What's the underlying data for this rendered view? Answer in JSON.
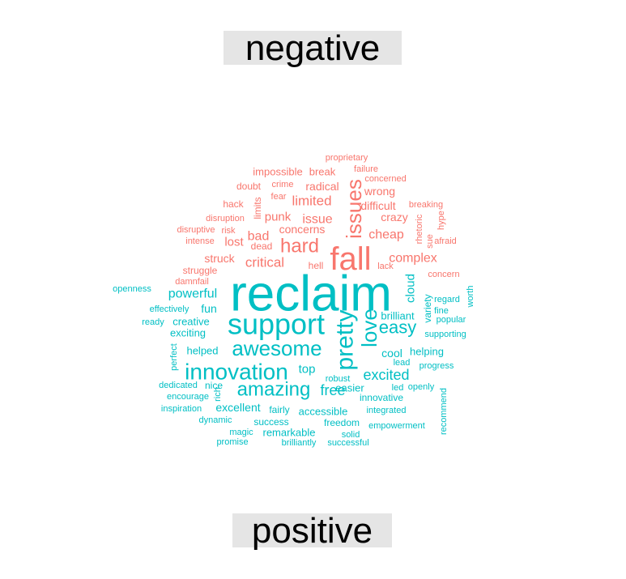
{
  "chart_data": {
    "type": "comparison-wordcloud",
    "groups": [
      {
        "name": "negative",
        "color": "#F8766D"
      },
      {
        "name": "positive",
        "color": "#00BFC4"
      }
    ],
    "words": [
      {
        "text": "proprietary",
        "group": "negative",
        "size": 11
      },
      {
        "text": "failure",
        "group": "negative",
        "size": 11
      },
      {
        "text": "impossible",
        "group": "negative",
        "size": 13
      },
      {
        "text": "break",
        "group": "negative",
        "size": 13
      },
      {
        "text": "concerned",
        "group": "negative",
        "size": 11
      },
      {
        "text": "doubt",
        "group": "negative",
        "size": 12
      },
      {
        "text": "crime",
        "group": "negative",
        "size": 11
      },
      {
        "text": "radical",
        "group": "negative",
        "size": 14
      },
      {
        "text": "issues",
        "group": "negative",
        "size": 26
      },
      {
        "text": "wrong",
        "group": "negative",
        "size": 14
      },
      {
        "text": "hack",
        "group": "negative",
        "size": 12
      },
      {
        "text": "fear",
        "group": "negative",
        "size": 11
      },
      {
        "text": "limited",
        "group": "negative",
        "size": 17
      },
      {
        "text": "difficult",
        "group": "negative",
        "size": 14
      },
      {
        "text": "breaking",
        "group": "negative",
        "size": 11
      },
      {
        "text": "limits",
        "group": "negative",
        "size": 12
      },
      {
        "text": "disruption",
        "group": "negative",
        "size": 11
      },
      {
        "text": "punk",
        "group": "negative",
        "size": 15
      },
      {
        "text": "issue",
        "group": "negative",
        "size": 16
      },
      {
        "text": "crazy",
        "group": "negative",
        "size": 14
      },
      {
        "text": "rhetoric",
        "group": "negative",
        "size": 11
      },
      {
        "text": "sue",
        "group": "negative",
        "size": 11
      },
      {
        "text": "hype",
        "group": "negative",
        "size": 11
      },
      {
        "text": "disruptive",
        "group": "negative",
        "size": 11
      },
      {
        "text": "risk",
        "group": "negative",
        "size": 11
      },
      {
        "text": "concerns",
        "group": "negative",
        "size": 14
      },
      {
        "text": "cheap",
        "group": "negative",
        "size": 16
      },
      {
        "text": "intense",
        "group": "negative",
        "size": 11
      },
      {
        "text": "bad",
        "group": "negative",
        "size": 16
      },
      {
        "text": "hard",
        "group": "negative",
        "size": 24
      },
      {
        "text": "afraid",
        "group": "negative",
        "size": 11
      },
      {
        "text": "lost",
        "group": "negative",
        "size": 15
      },
      {
        "text": "dead",
        "group": "negative",
        "size": 12
      },
      {
        "text": "fall",
        "group": "negative",
        "size": 40
      },
      {
        "text": "complex",
        "group": "negative",
        "size": 16
      },
      {
        "text": "struck",
        "group": "negative",
        "size": 14
      },
      {
        "text": "critical",
        "group": "negative",
        "size": 17
      },
      {
        "text": "struggle",
        "group": "negative",
        "size": 12
      },
      {
        "text": "hell",
        "group": "negative",
        "size": 12
      },
      {
        "text": "lack",
        "group": "negative",
        "size": 11
      },
      {
        "text": "concern",
        "group": "negative",
        "size": 11
      },
      {
        "text": "damnfail",
        "group": "negative",
        "size": 11
      },
      {
        "text": "reclaim",
        "group": "positive",
        "size": 62
      },
      {
        "text": "openness",
        "group": "positive",
        "size": 11
      },
      {
        "text": "powerful",
        "group": "positive",
        "size": 16
      },
      {
        "text": "cloud",
        "group": "positive",
        "size": 15
      },
      {
        "text": "worth",
        "group": "positive",
        "size": 11
      },
      {
        "text": "regard",
        "group": "positive",
        "size": 11
      },
      {
        "text": "effectively",
        "group": "positive",
        "size": 11
      },
      {
        "text": "fun",
        "group": "positive",
        "size": 14
      },
      {
        "text": "variety",
        "group": "positive",
        "size": 12
      },
      {
        "text": "fine",
        "group": "positive",
        "size": 11
      },
      {
        "text": "ready",
        "group": "positive",
        "size": 11
      },
      {
        "text": "creative",
        "group": "positive",
        "size": 13
      },
      {
        "text": "support",
        "group": "positive",
        "size": 36
      },
      {
        "text": "love",
        "group": "positive",
        "size": 26
      },
      {
        "text": "brilliant",
        "group": "positive",
        "size": 13
      },
      {
        "text": "popular",
        "group": "positive",
        "size": 11
      },
      {
        "text": "easy",
        "group": "positive",
        "size": 22
      },
      {
        "text": "exciting",
        "group": "positive",
        "size": 13
      },
      {
        "text": "pretty",
        "group": "positive",
        "size": 30
      },
      {
        "text": "supporting",
        "group": "positive",
        "size": 11
      },
      {
        "text": "perfect",
        "group": "positive",
        "size": 11
      },
      {
        "text": "awesome",
        "group": "positive",
        "size": 26
      },
      {
        "text": "helped",
        "group": "positive",
        "size": 13
      },
      {
        "text": "cool",
        "group": "positive",
        "size": 14
      },
      {
        "text": "helping",
        "group": "positive",
        "size": 13
      },
      {
        "text": "lead",
        "group": "positive",
        "size": 11
      },
      {
        "text": "innovation",
        "group": "positive",
        "size": 28
      },
      {
        "text": "top",
        "group": "positive",
        "size": 15
      },
      {
        "text": "excited",
        "group": "positive",
        "size": 18
      },
      {
        "text": "progress",
        "group": "positive",
        "size": 11
      },
      {
        "text": "dedicated",
        "group": "positive",
        "size": 11
      },
      {
        "text": "nice",
        "group": "positive",
        "size": 12
      },
      {
        "text": "robust",
        "group": "positive",
        "size": 11
      },
      {
        "text": "amazing",
        "group": "positive",
        "size": 24
      },
      {
        "text": "easier",
        "group": "positive",
        "size": 13
      },
      {
        "text": "led",
        "group": "positive",
        "size": 11
      },
      {
        "text": "openly",
        "group": "positive",
        "size": 11
      },
      {
        "text": "encourage",
        "group": "positive",
        "size": 11
      },
      {
        "text": "rich",
        "group": "positive",
        "size": 11
      },
      {
        "text": "free",
        "group": "positive",
        "size": 18
      },
      {
        "text": "innovative",
        "group": "positive",
        "size": 12
      },
      {
        "text": "excellent",
        "group": "positive",
        "size": 14
      },
      {
        "text": "recommend",
        "group": "positive",
        "size": 11
      },
      {
        "text": "inspiration",
        "group": "positive",
        "size": 11
      },
      {
        "text": "fairly",
        "group": "positive",
        "size": 12
      },
      {
        "text": "accessible",
        "group": "positive",
        "size": 13
      },
      {
        "text": "integrated",
        "group": "positive",
        "size": 11
      },
      {
        "text": "dynamic",
        "group": "positive",
        "size": 11
      },
      {
        "text": "success",
        "group": "positive",
        "size": 12
      },
      {
        "text": "freedom",
        "group": "positive",
        "size": 12
      },
      {
        "text": "empowerment",
        "group": "positive",
        "size": 11
      },
      {
        "text": "magic",
        "group": "positive",
        "size": 11
      },
      {
        "text": "remarkable",
        "group": "positive",
        "size": 13
      },
      {
        "text": "solid",
        "group": "positive",
        "size": 11
      },
      {
        "text": "promise",
        "group": "positive",
        "size": 11
      },
      {
        "text": "brilliantly",
        "group": "positive",
        "size": 11
      },
      {
        "text": "successful",
        "group": "positive",
        "size": 11
      }
    ]
  }
}
